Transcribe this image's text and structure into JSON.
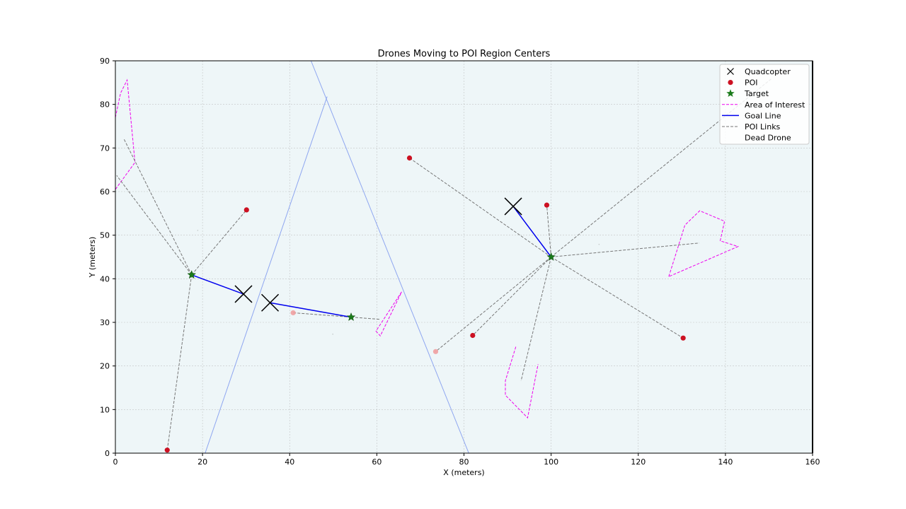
{
  "chart_data": {
    "type": "scatter",
    "title": "Drones Moving to POI Region Centers",
    "xlabel": "X (meters)",
    "ylabel": "Y (meters)",
    "xlim": [
      0,
      160
    ],
    "ylim": [
      0,
      90
    ],
    "xticks": [
      "0",
      "20",
      "40",
      "60",
      "80",
      "100",
      "120",
      "140",
      "160"
    ],
    "yticks": [
      "0",
      "10",
      "20",
      "30",
      "40",
      "50",
      "60",
      "70",
      "80",
      "90"
    ],
    "grid": true,
    "legend_position": "top-right",
    "colors": {
      "background": "#eef6f8",
      "quadcopter": "#000000",
      "poi": "#cc1122",
      "poi_faded": "#f0a0a0",
      "target": "#1a7a1a",
      "area_of_interest": "#ee00ee",
      "goal_line": "#0000ee",
      "poi_links": "#777777",
      "boundary": "#8ea6f0"
    },
    "legend": [
      {
        "label": "Quadcopter",
        "icon": "x-marker"
      },
      {
        "label": "POI",
        "icon": "circle-marker"
      },
      {
        "label": "Target",
        "icon": "star-marker"
      },
      {
        "label": "Area of Interest",
        "icon": "dashed-line"
      },
      {
        "label": "Goal Line",
        "icon": "solid-line"
      },
      {
        "label": "POI Links",
        "icon": "dashed-line"
      },
      {
        "label": "Dead Drone",
        "icon": "none"
      }
    ],
    "series": [
      {
        "name": "Quadcopter",
        "points": [
          [
            29.4,
            36.5
          ],
          [
            35.5,
            34.5
          ],
          [
            91.3,
            56.6
          ]
        ]
      },
      {
        "name": "POI",
        "points": [
          {
            "x": 30.1,
            "y": 55.8,
            "faded": false
          },
          {
            "x": 67.5,
            "y": 67.7,
            "faded": false
          },
          {
            "x": 99.0,
            "y": 56.9,
            "faded": false
          },
          {
            "x": 82.0,
            "y": 27.0,
            "faded": false
          },
          {
            "x": 130.3,
            "y": 26.4,
            "faded": false
          },
          {
            "x": 11.9,
            "y": 0.7,
            "faded": false
          },
          {
            "x": 73.5,
            "y": 23.3,
            "faded": true
          },
          {
            "x": 40.8,
            "y": 32.2,
            "faded": true
          }
        ]
      },
      {
        "name": "Target",
        "points": [
          [
            17.5,
            40.9
          ],
          [
            54.1,
            31.2
          ],
          [
            100.0,
            45.0
          ]
        ]
      },
      {
        "name": "Goal Line",
        "segments": [
          [
            [
              17.5,
              40.9
            ],
            [
              29.4,
              36.5
            ]
          ],
          [
            [
              35.5,
              34.5
            ],
            [
              54.1,
              31.2
            ]
          ],
          [
            [
              91.3,
              56.6
            ],
            [
              100.0,
              45.0
            ]
          ]
        ]
      },
      {
        "name": "POI Links",
        "segments": [
          [
            [
              17.5,
              40.9
            ],
            [
              1.9,
              72.2
            ]
          ],
          [
            [
              17.5,
              40.9
            ],
            [
              0.3,
              63.7
            ]
          ],
          [
            [
              17.5,
              40.9
            ],
            [
              30.1,
              55.8
            ]
          ],
          [
            [
              17.5,
              40.9
            ],
            [
              11.9,
              0.7
            ]
          ],
          [
            [
              54.1,
              31.2
            ],
            [
              40.8,
              32.2
            ]
          ],
          [
            [
              54.1,
              31.2
            ],
            [
              60.7,
              30.7
            ]
          ],
          [
            [
              100.0,
              45.0
            ],
            [
              67.5,
              67.7
            ]
          ],
          [
            [
              100.0,
              45.0
            ],
            [
              99.0,
              56.9
            ]
          ],
          [
            [
              100.0,
              45.0
            ],
            [
              82.0,
              27.0
            ]
          ],
          [
            [
              100.0,
              45.0
            ],
            [
              73.5,
              23.3
            ]
          ],
          [
            [
              100.0,
              45.0
            ],
            [
              93.1,
              16.6
            ]
          ],
          [
            [
              100.0,
              45.0
            ],
            [
              130.3,
              26.4
            ]
          ],
          [
            [
              100.0,
              45.0
            ],
            [
              134.0,
              48.2
            ]
          ],
          [
            [
              100.0,
              45.0
            ],
            [
              150.7,
              86.0
            ]
          ]
        ]
      },
      {
        "name": "Area of Interest",
        "polygons": [
          [
            [
              0.0,
              77.0
            ],
            [
              1.2,
              82.6
            ],
            [
              2.7,
              85.6
            ],
            [
              4.5,
              66.7
            ],
            [
              0.0,
              60.5
            ]
          ],
          [
            [
              65.7,
              37.0
            ],
            [
              59.8,
              28.0
            ],
            [
              60.8,
              26.9
            ],
            [
              65.7,
              37.0
            ]
          ],
          [
            [
              91.9,
              24.4
            ],
            [
              89.5,
              16.6
            ],
            [
              89.5,
              13.3
            ],
            [
              94.6,
              8.1
            ],
            [
              97.0,
              20.4
            ]
          ],
          [
            [
              127.0,
              40.5
            ],
            [
              130.7,
              52.3
            ],
            [
              134.1,
              55.6
            ],
            [
              139.8,
              53.2
            ],
            [
              138.8,
              48.7
            ],
            [
              142.9,
              47.4
            ],
            [
              127.0,
              40.5
            ]
          ]
        ]
      },
      {
        "name": "Boundary",
        "segments": [
          [
            [
              20.6,
              0.0
            ],
            [
              48.6,
              81.8
            ]
          ],
          [
            [
              44.9,
              90.0
            ],
            [
              81.1,
              0.0
            ]
          ]
        ]
      },
      {
        "name": "Dead Drone",
        "points": [
          [
            18.9,
            51.1
          ],
          [
            49.9,
            27.3
          ],
          [
            111.0,
            47.9
          ]
        ]
      }
    ]
  }
}
